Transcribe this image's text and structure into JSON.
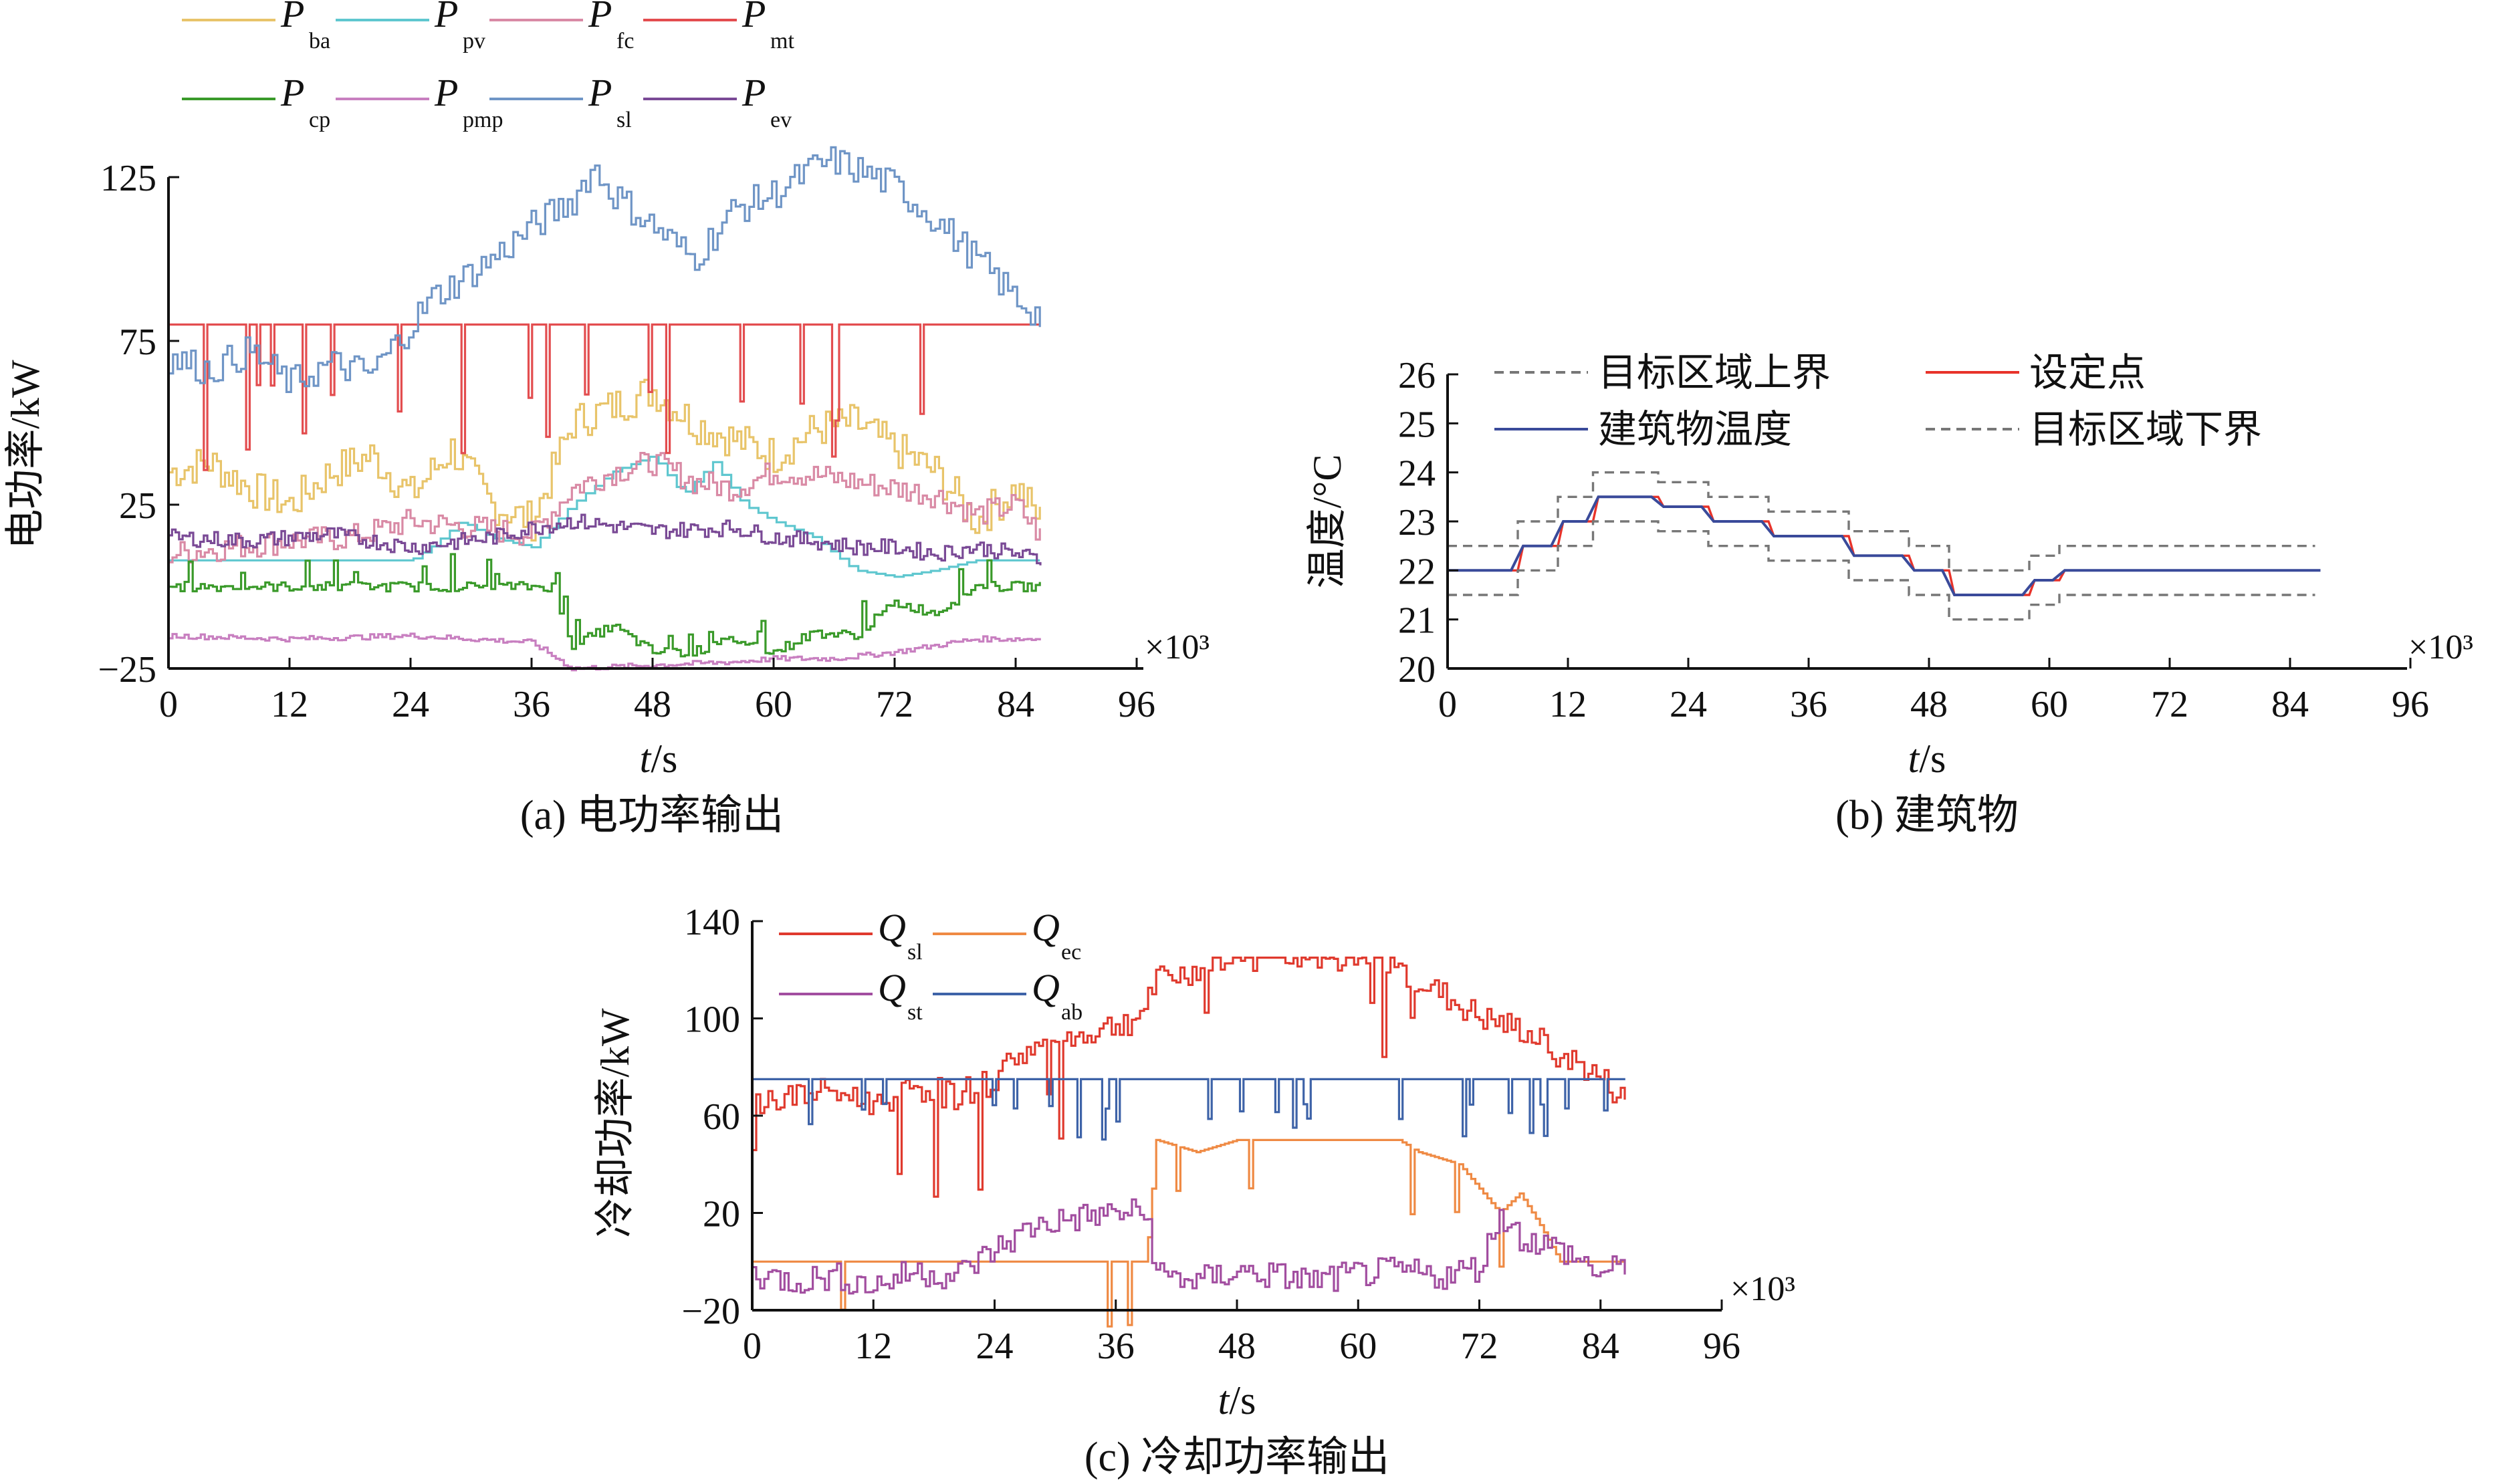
{
  "figure": {
    "caption_a": "(a) 电功率输出",
    "caption_b": "(b) 建筑物",
    "caption_c": "(c) 冷却功率输出",
    "multiplier": "×10³"
  },
  "colors": {
    "P_ba": "#e8c46a",
    "P_pv": "#5fc7cf",
    "P_fc": "#d98aa5",
    "P_mt": "#e34d4f",
    "P_cp": "#3a9a2a",
    "P_pmp": "#c87fc0",
    "P_sl": "#6f95c6",
    "P_ev": "#7a4a96",
    "upper": "#777777",
    "setpoint": "#e8332a",
    "temp": "#3a4a9a",
    "lower": "#777777",
    "Q_sl": "#e03a2e",
    "Q_ec": "#ef8a44",
    "Q_st": "#a24ea0",
    "Q_ab": "#3e63a8"
  },
  "chart_data": [
    {
      "type": "line",
      "id": "a",
      "xlabel": "t/s",
      "ylabel": "电功率/kW",
      "xlim": [
        0,
        96
      ],
      "ylim": [
        -25,
        125
      ],
      "xticks": [
        0,
        12,
        24,
        36,
        48,
        60,
        72,
        84,
        96
      ],
      "yticks": [
        -25,
        25,
        75,
        125
      ],
      "x_multiplier": "×10³",
      "legend_position": "top",
      "series": [
        {
          "name": "P_ba",
          "label": "P",
          "sub": "ba",
          "color": "P_ba",
          "x": [
            0,
            4,
            8,
            12,
            16,
            20,
            24,
            28,
            32,
            36,
            40,
            44,
            48,
            52,
            56,
            60,
            64,
            68,
            72,
            76,
            80,
            84,
            86.5
          ],
          "y": [
            35,
            38,
            30,
            25,
            35,
            40,
            28,
            42,
            25,
            20,
            50,
            55,
            60,
            50,
            45,
            40,
            48,
            50,
            42,
            35,
            20,
            30,
            20
          ]
        },
        {
          "name": "P_pv",
          "label": "P",
          "sub": "pv",
          "color": "P_pv",
          "x": [
            0,
            24,
            26,
            29,
            32,
            36,
            40,
            44,
            48,
            51,
            54,
            57,
            60,
            64,
            68,
            72,
            76,
            80,
            86.5
          ],
          "y": [
            8,
            8,
            12,
            20,
            15,
            12,
            25,
            35,
            40,
            28,
            38,
            25,
            20,
            15,
            5,
            3,
            5,
            8,
            8
          ]
        },
        {
          "name": "P_fc",
          "label": "P",
          "sub": "fc",
          "color": "P_fc",
          "x": [
            0,
            6,
            12,
            18,
            24,
            30,
            36,
            40,
            44,
            48,
            52,
            56,
            60,
            64,
            68,
            72,
            76,
            80,
            84,
            86.5
          ],
          "y": [
            10,
            12,
            14,
            15,
            20,
            18,
            16,
            30,
            35,
            38,
            32,
            30,
            35,
            34,
            32,
            30,
            28,
            22,
            25,
            15
          ]
        },
        {
          "name": "P_mt",
          "label": "P",
          "sub": "mt",
          "color": "P_mt",
          "x": [
            0,
            12,
            24,
            36,
            48,
            60,
            72,
            84,
            86.5
          ],
          "y": [
            80,
            80,
            80,
            80,
            80,
            80,
            80,
            80,
            80
          ]
        },
        {
          "name": "P_cp",
          "label": "P",
          "sub": "cp",
          "color": "P_cp",
          "x": [
            0,
            38,
            40,
            44,
            48,
            52,
            56,
            60,
            64,
            68,
            72,
            76,
            80,
            86.5
          ],
          "y": [
            0,
            0,
            -18,
            -12,
            -20,
            -20,
            -16,
            -20,
            -14,
            -15,
            -5,
            -8,
            0,
            0
          ]
        },
        {
          "name": "P_pmp",
          "label": "P",
          "sub": "pmp",
          "color": "P_pmp",
          "x": [
            0,
            12,
            24,
            36,
            40,
            48,
            56,
            60,
            66,
            72,
            76,
            80,
            86.5
          ],
          "y": [
            -15,
            -16,
            -15,
            -17,
            -25,
            -24,
            -23,
            -22,
            -22,
            -20,
            -18,
            -16,
            -16
          ]
        },
        {
          "name": "P_sl",
          "label": "P",
          "sub": "sl",
          "color": "P_sl",
          "x": [
            0,
            4,
            8,
            12,
            16,
            20,
            24,
            26,
            28,
            32,
            36,
            40,
            42,
            44,
            48,
            52,
            56,
            60,
            64,
            66,
            70,
            72,
            76,
            80,
            84,
            86.5
          ],
          "y": [
            70,
            66,
            72,
            62,
            68,
            65,
            80,
            88,
            92,
            100,
            110,
            118,
            128,
            120,
            110,
            100,
            115,
            120,
            128,
            130,
            125,
            122,
            112,
            100,
            88,
            82
          ]
        },
        {
          "name": "P_ev",
          "label": "P",
          "sub": "ev",
          "color": "P_ev",
          "x": [
            0,
            8,
            16,
            24,
            32,
            36,
            40,
            48,
            56,
            60,
            64,
            68,
            72,
            76,
            80,
            84,
            86.5
          ],
          "y": [
            15,
            14,
            16,
            12,
            15,
            18,
            20,
            17,
            18,
            15,
            14,
            12,
            12,
            10,
            12,
            10,
            8
          ]
        }
      ]
    },
    {
      "type": "line",
      "id": "b",
      "xlabel": "t/s",
      "ylabel": "温度/°C",
      "xlim": [
        0,
        96
      ],
      "ylim": [
        20,
        26
      ],
      "xticks": [
        0,
        12,
        24,
        36,
        48,
        60,
        72,
        84,
        96
      ],
      "yticks": [
        20,
        21,
        22,
        23,
        24,
        25,
        26
      ],
      "x_multiplier": "×10³",
      "legend_position": "top",
      "step_x": [
        0,
        7,
        11,
        14.5,
        21,
        26,
        32,
        40,
        46,
        50,
        58,
        61,
        86.5
      ],
      "series": [
        {
          "name": "目标区域上界",
          "color": "upper",
          "dashed": true,
          "y": [
            22.5,
            23.0,
            23.5,
            24.0,
            23.8,
            23.5,
            23.2,
            22.8,
            22.5,
            22.0,
            22.3,
            22.5,
            22.5
          ]
        },
        {
          "name": "设定点",
          "color": "setpoint",
          "y": [
            22.0,
            22.5,
            23.0,
            23.5,
            23.3,
            23.0,
            22.7,
            22.3,
            22.0,
            21.5,
            21.8,
            22.0,
            22.0
          ]
        },
        {
          "name": "建筑物温度",
          "color": "temp",
          "y": [
            22.0,
            22.5,
            23.0,
            23.5,
            23.3,
            23.0,
            22.7,
            22.3,
            22.0,
            21.5,
            21.8,
            22.0,
            22.0
          ]
        },
        {
          "name": "目标区域下界",
          "color": "lower",
          "dashed": true,
          "y": [
            21.5,
            22.0,
            22.5,
            23.0,
            22.8,
            22.5,
            22.2,
            21.8,
            21.5,
            21.0,
            21.3,
            21.5,
            21.5
          ]
        }
      ]
    },
    {
      "type": "line",
      "id": "c",
      "xlabel": "t/s",
      "ylabel": "冷却功率/kW",
      "xlim": [
        0,
        96
      ],
      "ylim": [
        -20,
        140
      ],
      "xticks": [
        0,
        12,
        24,
        36,
        48,
        60,
        72,
        84,
        96
      ],
      "yticks": [
        -20,
        20,
        60,
        100,
        140
      ],
      "x_multiplier": "×10³",
      "legend_position": "top-left",
      "series": [
        {
          "name": "Q_sl",
          "label": "Q",
          "sub": "sl",
          "color": "Q_sl",
          "x": [
            0,
            4,
            8,
            12,
            16,
            20,
            24,
            26,
            30,
            34,
            38,
            40,
            44,
            48,
            52,
            56,
            60,
            64,
            68,
            72,
            76,
            80,
            84,
            86.5
          ],
          "y": [
            65,
            68,
            70,
            65,
            72,
            68,
            75,
            85,
            90,
            95,
            100,
            115,
            120,
            125,
            125,
            125,
            125,
            120,
            110,
            100,
            95,
            85,
            75,
            65
          ]
        },
        {
          "name": "Q_ec",
          "label": "Q",
          "sub": "ec",
          "color": "Q_ec",
          "x": [
            0,
            39,
            40,
            44,
            48,
            52,
            56,
            60,
            64,
            66,
            70,
            74,
            76,
            78,
            80,
            86.5
          ],
          "y": [
            0,
            0,
            50,
            45,
            50,
            50,
            50,
            50,
            50,
            45,
            40,
            20,
            28,
            15,
            0,
            0
          ]
        },
        {
          "name": "Q_st",
          "label": "Q",
          "sub": "st",
          "color": "Q_st",
          "x": [
            0,
            4,
            8,
            12,
            16,
            20,
            24,
            28,
            32,
            36,
            39,
            40,
            44,
            48,
            52,
            56,
            60,
            64,
            68,
            72,
            74,
            76,
            80,
            84,
            86.5
          ],
          "y": [
            -5,
            -8,
            -6,
            -10,
            -4,
            -6,
            5,
            15,
            18,
            20,
            20,
            -5,
            -8,
            -4,
            -6,
            -8,
            -5,
            -4,
            -6,
            -2,
            20,
            10,
            5,
            -5,
            -2
          ]
        },
        {
          "name": "Q_ab",
          "label": "Q",
          "sub": "ab",
          "color": "Q_ab",
          "x": [
            0,
            12,
            24,
            32,
            36,
            48,
            60,
            72,
            80,
            84,
            86.5
          ],
          "y": [
            75,
            75,
            75,
            75,
            75,
            75,
            75,
            75,
            75,
            75,
            75
          ]
        }
      ]
    }
  ]
}
